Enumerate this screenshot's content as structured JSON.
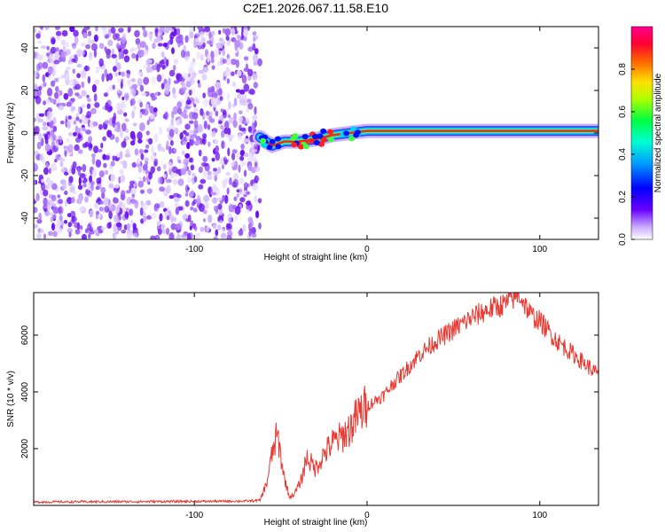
{
  "title": "C2E1.2026.067.11.58.E10",
  "chart_data": [
    {
      "type": "heatmap",
      "xlabel": "Height of straight line (km)",
      "ylabel": "Frequency (Hz)",
      "xlim": [
        -193,
        134
      ],
      "ylim": [
        -50,
        50
      ],
      "xticks": [
        -100,
        0,
        100
      ],
      "yticks": [
        -40,
        -20,
        0,
        20,
        40
      ],
      "colorbar": {
        "label": "Normalized spectral amplitude",
        "range": [
          0,
          1
        ],
        "ticks": [
          0.0,
          0.2,
          0.4,
          0.6,
          0.8
        ]
      },
      "noise_region": {
        "x": [
          -193,
          -62
        ],
        "description_value": 0.4
      },
      "signal_trace": [
        {
          "x": -62,
          "y": -2
        },
        {
          "x": -55,
          "y": -6
        },
        {
          "x": -48,
          "y": -4
        },
        {
          "x": -40,
          "y": -4
        },
        {
          "x": -30,
          "y": -3
        },
        {
          "x": -20,
          "y": -1
        },
        {
          "x": -10,
          "y": 0
        },
        {
          "x": 0,
          "y": 1
        },
        {
          "x": 10,
          "y": 1
        },
        {
          "x": 30,
          "y": 1
        },
        {
          "x": 60,
          "y": 1
        },
        {
          "x": 90,
          "y": 1
        },
        {
          "x": 134,
          "y": 1
        }
      ],
      "grid": false
    },
    {
      "type": "line",
      "xlabel": "Height of straight line (km)",
      "ylabel": "SNR (10 * v/v)",
      "xlim": [
        -193,
        134
      ],
      "ylim": [
        0,
        7500
      ],
      "xticks": [
        -100,
        0,
        100
      ],
      "yticks": [
        2000,
        4000,
        6000
      ],
      "color": "#e83a32",
      "series": [
        {
          "x": [
            -193,
            -150,
            -100,
            -70,
            -62,
            -58,
            -55,
            -52,
            -48,
            -45,
            -42,
            -38,
            -35,
            -30,
            -25,
            -20,
            -15,
            -10,
            -5,
            0,
            5,
            10,
            15,
            20,
            30,
            40,
            50,
            60,
            70,
            80,
            88,
            95,
            100,
            110,
            120,
            134
          ],
          "values": [
            120,
            130,
            140,
            150,
            180,
            800,
            1800,
            2500,
            1000,
            300,
            400,
            900,
            1700,
            1300,
            1800,
            2200,
            2400,
            2700,
            3200,
            3500,
            3700,
            3900,
            4300,
            4600,
            5300,
            5800,
            6200,
            6600,
            6900,
            7100,
            7450,
            6700,
            6500,
            5800,
            5300,
            4600
          ]
        }
      ],
      "grid": false
    }
  ]
}
